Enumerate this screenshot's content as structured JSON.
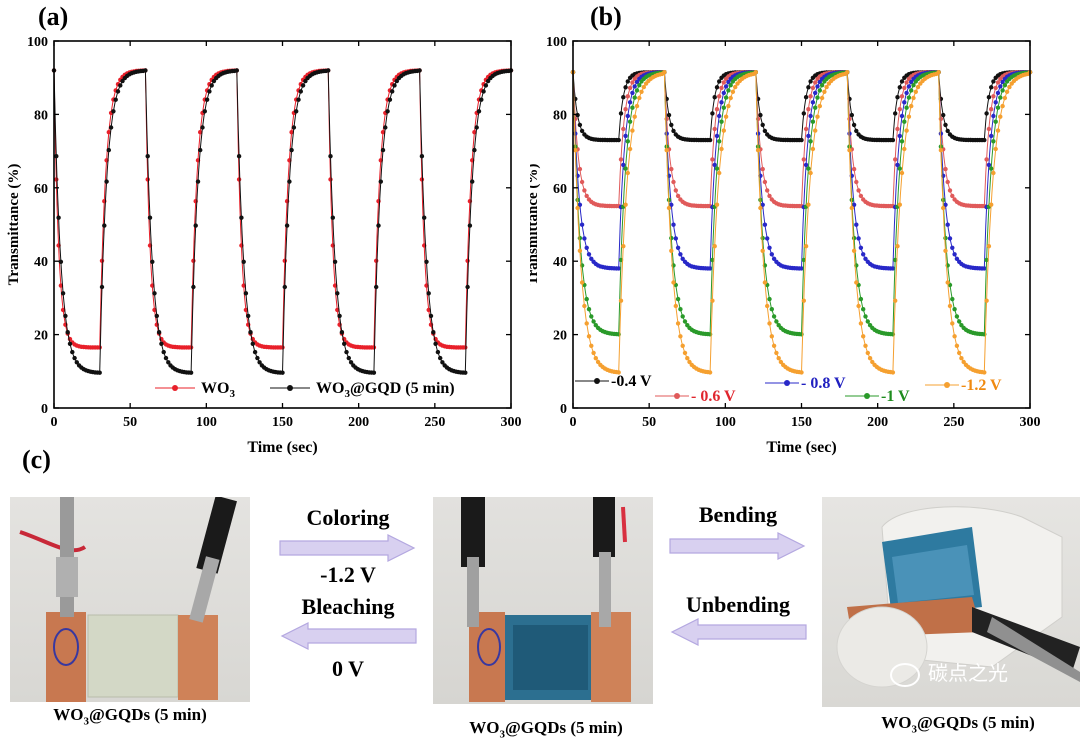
{
  "panel_labels": {
    "a": "(a)",
    "b": "(b)",
    "c": "(c)"
  },
  "chart_data": [
    {
      "type": "line",
      "title": "(a)",
      "xlabel": "Time (sec)",
      "ylabel": "Transmittance (%)",
      "xlim": [
        0,
        300
      ],
      "ylim": [
        0,
        100
      ],
      "xticks": [
        0,
        50,
        100,
        150,
        200,
        250,
        300
      ],
      "yticks": [
        0,
        20,
        40,
        60,
        80,
        100
      ],
      "cycle_period_sec": 60,
      "coloring_duration_sec": 30,
      "legend_position": "bottom-center",
      "series": [
        {
          "name": "WO3",
          "legend_main": "WO",
          "legend_sub": "3",
          "legend_tail": "",
          "color": "#e8202a",
          "bleached": 92,
          "colored": 16.5,
          "tau_color": 3,
          "tau_bleach": 4
        },
        {
          "name": "WO3@GQD (5 min)",
          "legend_main": "WO",
          "legend_sub": "3",
          "legend_tail": "@GQD (5 min)",
          "color": "#111111",
          "bleached": 92,
          "colored": 9.5,
          "tau_color": 4.5,
          "tau_bleach": 4.5
        }
      ]
    },
    {
      "type": "line",
      "title": "(b)",
      "xlabel": "Time (sec)",
      "ylabel": "Transmittance (%)",
      "xlim": [
        0,
        300
      ],
      "ylim": [
        0,
        100
      ],
      "xticks": [
        0,
        50,
        100,
        150,
        200,
        250,
        300
      ],
      "yticks": [
        0,
        20,
        40,
        60,
        80,
        100
      ],
      "cycle_period_sec": 60,
      "coloring_duration_sec": 30,
      "legend_position": "bottom",
      "series": [
        {
          "name": "-0.4 V",
          "color": "#111111",
          "label_color": "#000000",
          "bleached": 91.5,
          "colored": 73,
          "tau_color": 3,
          "tau_bleach": 3
        },
        {
          "name": "- 0.6 V",
          "color": "#e05a5a",
          "label_color": "#e0262e",
          "bleached": 91.5,
          "colored": 55,
          "tau_color": 3.5,
          "tau_bleach": 3.5
        },
        {
          "name": "- 0.8 V",
          "color": "#2828c8",
          "label_color": "#2020c0",
          "bleached": 91.5,
          "colored": 38,
          "tau_color": 4,
          "tau_bleach": 4
        },
        {
          "name": "-1 V",
          "color": "#2a9a2a",
          "label_color": "#1e8c1e",
          "bleached": 91.5,
          "colored": 20,
          "tau_color": 4.5,
          "tau_bleach": 4.5
        },
        {
          "name": "-1.2 V",
          "color": "#f5a030",
          "label_color": "#f08a10",
          "bleached": 91.5,
          "colored": 9.5,
          "tau_color": 5,
          "tau_bleach": 5.5
        }
      ]
    }
  ],
  "process": {
    "coloring_label": "Coloring",
    "coloring_voltage": "-1.2 V",
    "bleaching_label": "Bleaching",
    "bleaching_voltage": "0 V",
    "bending_label": "Bending",
    "unbending_label": "Unbending",
    "photo_captions": [
      {
        "main": "WO",
        "sub": "3",
        "tail": "@GQDs (5 min)"
      },
      {
        "main": "WO",
        "sub": "3",
        "tail": "@GQDs (5 min)"
      },
      {
        "main": "WO",
        "sub": "3",
        "tail": "@GQDs (5 min)"
      }
    ],
    "watermark": "碳点之光"
  },
  "colors": {
    "arrow_fill": "#d8d0f0",
    "arrow_stroke": "#b4a8e0",
    "film_blue": "#2c6f90",
    "copper": "#c87850"
  }
}
